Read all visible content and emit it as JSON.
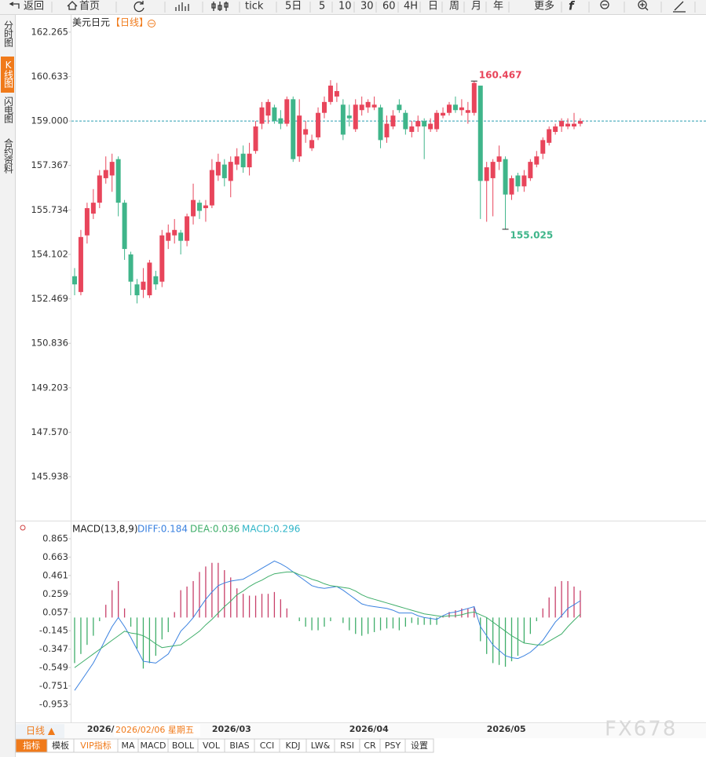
{
  "toolbar": [
    "返回",
    "首页",
    "tick",
    "5日",
    "5",
    "10",
    "30",
    "60",
    "4H",
    "日",
    "周",
    "月",
    "年",
    "更多"
  ],
  "sidebar": [
    "分时图",
    "K线图",
    "闪电图",
    "合约资料"
  ],
  "footer": {
    "period": "日线 ▲",
    "tabs": [
      "指标",
      "模板",
      "VIP指标",
      "MA",
      "MACD",
      "BOLL",
      "VOL",
      "BIAS",
      "CCI",
      "KDJ",
      "LW&",
      "RSI",
      "CR",
      "PSY",
      "设置"
    ],
    "watermark": "FX678"
  },
  "chart_data": [
    {
      "type": "candlestick",
      "title": "美元日元",
      "subtitle": "【日线】",
      "cursor_label": "2026/02/06 星期五",
      "up_color": "#e8455b",
      "down_color": "#3fb58a",
      "reference_line": 159,
      "ylim": [
        144.41,
        162.81
      ],
      "yticks": [
        162.265,
        160.633,
        {
          "value": 159,
          "label": "159.000"
        },
        157.367,
        155.734,
        154.102,
        152.469,
        150.836,
        149.203,
        {
          "value": 147.57,
          "label": "147.570"
        },
        145.938
      ],
      "categories": [
        null,
        null,
        "2026/",
        null,
        null,
        null,
        null,
        null,
        null,
        null,
        null,
        null,
        null,
        null,
        null,
        null,
        null,
        null,
        null,
        null,
        null,
        null,
        "2026/03",
        null,
        null,
        null,
        null,
        null,
        null,
        null,
        null,
        null,
        null,
        null,
        null,
        null,
        null,
        null,
        null,
        null,
        null,
        null,
        null,
        null,
        "2026/04",
        null,
        null,
        null,
        null,
        null,
        null,
        null,
        null,
        null,
        null,
        null,
        null,
        null,
        null,
        null,
        null,
        null,
        null,
        null,
        null,
        null,
        "2026/05",
        null,
        null,
        null,
        null,
        null,
        null,
        null,
        null,
        null,
        null,
        null,
        null,
        null,
        null,
        null
      ],
      "open": [
        153.3,
        152.72,
        154.8,
        155.6,
        156.0,
        156.9,
        157.0,
        157.6,
        156.0,
        154.1,
        153.0,
        152.8,
        152.6,
        153.3,
        153.1,
        154.6,
        154.8,
        154.9,
        154.6,
        155.5,
        156.0,
        155.8,
        155.9,
        157.0,
        157.4,
        156.8,
        157.4,
        157.8,
        157.3,
        157.9,
        158.9,
        159.2,
        159.5,
        159.1,
        158.9,
        159.8,
        157.7,
        158.5,
        158.0,
        158.4,
        159.3,
        159.7,
        159.9,
        159.6,
        159.2,
        158.7,
        159.4,
        159.5,
        159.5,
        159.5,
        158.4,
        158.8,
        159.6,
        159.3,
        158.6,
        158.8,
        159.0,
        158.7,
        158.7,
        159.2,
        159.3,
        159.6,
        159.4,
        159.3,
        159.3,
        160.3,
        156.8,
        156.9,
        157.5,
        157.6,
        156.3,
        157.0,
        156.6,
        156.9,
        157.4,
        157.8,
        158.2,
        158.6,
        158.8,
        158.8,
        158.8,
        158.9
      ],
      "high": [
        153.6,
        155.0,
        156.0,
        156.5,
        157.2,
        157.7,
        157.8,
        157.7,
        156.1,
        154.2,
        153.2,
        153.6,
        153.9,
        153.5,
        155.0,
        155.2,
        155.4,
        155.0,
        155.6,
        156.7,
        156.1,
        156.1,
        157.6,
        157.8,
        157.6,
        157.7,
        158.0,
        158.1,
        158.2,
        159.0,
        159.7,
        159.8,
        159.6,
        159.4,
        159.9,
        159.9,
        159.8,
        159.0,
        158.5,
        159.5,
        159.9,
        160.5,
        160.4,
        159.8,
        159.6,
        159.8,
        159.9,
        159.8,
        159.9,
        159.6,
        159.2,
        159.4,
        159.8,
        159.4,
        159.0,
        159.2,
        159.1,
        159.1,
        159.4,
        159.5,
        159.7,
        159.9,
        159.8,
        159.7,
        160.467,
        160.3,
        157.5,
        157.6,
        158.1,
        157.7,
        157.0,
        157.1,
        157.2,
        157.6,
        157.9,
        158.4,
        158.8,
        158.9,
        159.1,
        159.1,
        159.3,
        159.1
      ],
      "low": [
        152.6,
        152.6,
        154.5,
        155.4,
        155.8,
        156.7,
        156.4,
        155.5,
        153.9,
        152.6,
        152.3,
        152.5,
        152.5,
        152.8,
        152.9,
        154.3,
        154.5,
        154.1,
        154.4,
        155.2,
        155.4,
        155.3,
        155.8,
        156.8,
        156.6,
        156.2,
        157.2,
        157.1,
        157.0,
        157.8,
        158.7,
        158.9,
        158.9,
        158.7,
        158.8,
        157.5,
        157.5,
        158.2,
        157.9,
        158.3,
        159.1,
        159.6,
        159.7,
        158.3,
        158.8,
        158.6,
        159.2,
        159.3,
        159.4,
        158.0,
        158.2,
        158.7,
        159.3,
        158.5,
        158.4,
        158.6,
        157.6,
        158.6,
        158.6,
        159.1,
        159.2,
        159.3,
        159.2,
        158.9,
        159.2,
        155.4,
        155.3,
        155.5,
        157.2,
        155.025,
        156.1,
        156.4,
        156.4,
        156.8,
        157.3,
        157.6,
        158.1,
        158.5,
        158.6,
        158.7,
        158.7,
        158.8
      ],
      "close": [
        153.0,
        154.74,
        155.8,
        156.0,
        157.0,
        157.2,
        157.5,
        156.0,
        154.3,
        153.1,
        152.6,
        153.1,
        153.8,
        153.0,
        154.8,
        154.9,
        155.0,
        154.6,
        155.5,
        156.1,
        155.7,
        155.9,
        157.2,
        157.5,
        156.9,
        157.5,
        157.7,
        157.3,
        157.8,
        158.8,
        159.5,
        159.7,
        159.0,
        158.9,
        159.8,
        157.6,
        159.2,
        158.7,
        158.3,
        159.3,
        159.7,
        160.3,
        160.1,
        158.5,
        159.1,
        159.6,
        159.6,
        159.7,
        159.6,
        158.3,
        158.9,
        159.2,
        159.4,
        158.7,
        158.8,
        159.0,
        158.8,
        158.9,
        159.3,
        159.3,
        159.6,
        159.4,
        159.5,
        159.4,
        160.4,
        156.8,
        157.3,
        157.5,
        157.7,
        156.3,
        156.9,
        156.6,
        157.0,
        157.5,
        157.7,
        158.3,
        158.7,
        158.8,
        159.0,
        158.9,
        158.9,
        159.0
      ],
      "annotations": [
        {
          "index": 64,
          "field": "high"
        },
        {
          "index": 69,
          "field": "low"
        }
      ]
    },
    {
      "type": "macd",
      "title": "MACD(13,8,9)",
      "ylim": [
        -1.134,
        1.02
      ],
      "yticks": [
        0.865,
        0.663,
        0.461,
        0.259,
        0.057,
        -0.145,
        -0.347,
        -0.549,
        -0.751,
        -0.953
      ],
      "series": [
        {
          "name": "DIFF:0.184",
          "color": "#3b82e0",
          "values": [
            -0.8,
            -0.7,
            -0.6,
            -0.5,
            -0.37,
            -0.23,
            -0.1,
            0.0,
            -0.1,
            -0.22,
            -0.35,
            -0.48,
            -0.49,
            -0.5,
            -0.45,
            -0.4,
            -0.28,
            -0.15,
            -0.08,
            0.0,
            0.1,
            0.2,
            0.28,
            0.35,
            0.38,
            0.4,
            0.41,
            0.42,
            0.46,
            0.5,
            0.54,
            0.58,
            0.62,
            0.59,
            0.55,
            0.5,
            0.45,
            0.4,
            0.35,
            0.33,
            0.32,
            0.33,
            0.34,
            0.3,
            0.25,
            0.2,
            0.15,
            0.13,
            0.12,
            0.11,
            0.1,
            0.08,
            0.05,
            0.05,
            0.05,
            0.02,
            0.0,
            -0.01,
            -0.02,
            0.02,
            0.05,
            0.06,
            0.08,
            0.1,
            0.12,
            -0.1,
            -0.2,
            -0.3,
            -0.36,
            -0.42,
            -0.44,
            -0.45,
            -0.42,
            -0.38,
            -0.32,
            -0.25,
            -0.15,
            -0.05,
            0.02,
            0.1,
            0.14,
            0.184
          ]
        },
        {
          "name": "DEA:0.036",
          "color": "#3fae6a",
          "values": [
            -0.55,
            -0.5,
            -0.45,
            -0.4,
            -0.35,
            -0.3,
            -0.25,
            -0.2,
            -0.15,
            -0.17,
            -0.18,
            -0.2,
            -0.24,
            -0.29,
            -0.33,
            -0.32,
            -0.31,
            -0.3,
            -0.25,
            -0.2,
            -0.15,
            -0.08,
            -0.02,
            0.05,
            0.12,
            0.18,
            0.25,
            0.29,
            0.34,
            0.38,
            0.41,
            0.45,
            0.48,
            0.49,
            0.5,
            0.5,
            0.47,
            0.45,
            0.42,
            0.4,
            0.37,
            0.35,
            0.34,
            0.33,
            0.32,
            0.29,
            0.25,
            0.22,
            0.2,
            0.18,
            0.16,
            0.14,
            0.12,
            0.1,
            0.08,
            0.06,
            0.04,
            0.03,
            0.02,
            0.01,
            0.02,
            0.02,
            0.03,
            0.05,
            0.06,
            0.03,
            0.0,
            -0.05,
            -0.1,
            -0.15,
            -0.2,
            -0.24,
            -0.28,
            -0.29,
            -0.3,
            -0.3,
            -0.26,
            -0.22,
            -0.18,
            -0.1,
            -0.03,
            0.036
          ]
        },
        {
          "name": "MACD:0.296",
          "color": "#2fb5c8",
          "up_color": "#c8406a",
          "down_color": "#3fae6a",
          "values": [
            -0.5,
            -0.4,
            -0.3,
            -0.2,
            -0.04,
            0.14,
            0.3,
            0.4,
            0.1,
            -0.1,
            -0.34,
            -0.56,
            -0.5,
            -0.42,
            -0.24,
            -0.16,
            0.06,
            0.3,
            0.34,
            0.4,
            0.5,
            0.56,
            0.6,
            0.6,
            0.52,
            0.44,
            0.32,
            0.26,
            0.24,
            0.24,
            0.26,
            0.26,
            0.28,
            0.2,
            0.1,
            0.0,
            -0.04,
            -0.1,
            -0.14,
            -0.14,
            -0.1,
            -0.04,
            0.0,
            -0.06,
            -0.14,
            -0.18,
            -0.2,
            -0.18,
            -0.16,
            -0.14,
            -0.12,
            -0.12,
            -0.14,
            -0.1,
            -0.06,
            -0.08,
            -0.08,
            -0.08,
            -0.08,
            0.02,
            0.06,
            0.08,
            0.1,
            0.1,
            0.12,
            -0.26,
            -0.4,
            -0.5,
            -0.52,
            -0.54,
            -0.48,
            -0.42,
            -0.28,
            -0.18,
            -0.04,
            0.1,
            0.22,
            0.34,
            0.4,
            0.4,
            0.34,
            0.296
          ]
        }
      ]
    }
  ]
}
